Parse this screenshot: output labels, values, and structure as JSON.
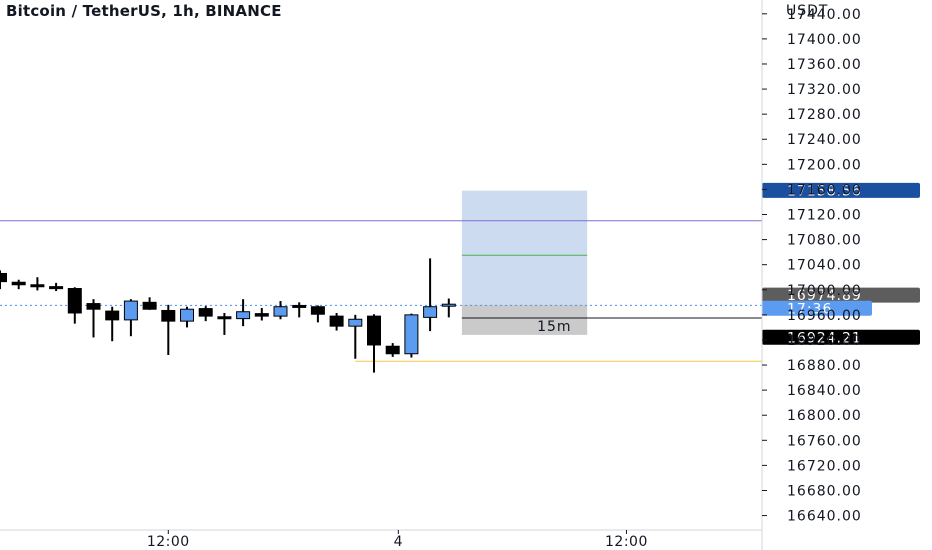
{
  "header": {
    "title": "Bitcoin / TetherUS, 1h, BINANCE"
  },
  "price_axis": {
    "currency": "USDT"
  },
  "colors": {
    "bull": "#5b9cf0",
    "bear": "#000000",
    "grid_axis": "#d1d4dc",
    "horizontal_purple": "#7b6fd6",
    "current_price_dotted": "#5b9cf0",
    "support_yellow": "#f5c842",
    "target_green": "#4caf50",
    "target_zone": "rgba(100,145,205,0.33)",
    "stop_zone": "rgba(128,128,128,0.42)",
    "tag_blue_dark": "#1b4fa0",
    "tag_gray": "#5d5d5d",
    "tag_blue": "#5b9cf0",
    "tag_black": "#000000"
  },
  "chart_data": {
    "type": "candlestick",
    "title": "Bitcoin / TetherUS, 1h, BINANCE",
    "symbol": "BTCUSDT",
    "timeframe": "1h",
    "exchange": "BINANCE",
    "ylabel": "USDT",
    "ylim": [
      16617,
      17462
    ],
    "price_ticks": [
      "17440.00",
      "17400.00",
      "17360.00",
      "17320.00",
      "17280.00",
      "17240.00",
      "17200.00",
      "17160.00",
      "17120.00",
      "17080.00",
      "17040.00",
      "17000.00",
      "16960.00",
      "16920.00",
      "16880.00",
      "16840.00",
      "16800.00",
      "16760.00",
      "16720.00",
      "16680.00",
      "16640.00"
    ],
    "time_ticks": [
      {
        "label": "12:00",
        "bar_index": 9.0
      },
      {
        "label": "4",
        "bar_index": 21.3
      },
      {
        "label": "12:00",
        "bar_index": 33.5
      }
    ],
    "candles": [
      {
        "o": 17026,
        "h": 17031,
        "l": 17001,
        "c": 17013
      },
      {
        "o": 17012,
        "h": 17016,
        "l": 17001,
        "c": 17008
      },
      {
        "o": 17008,
        "h": 17020,
        "l": 16999,
        "c": 17005
      },
      {
        "o": 17005,
        "h": 17011,
        "l": 16998,
        "c": 17003
      },
      {
        "o": 17002,
        "h": 17004,
        "l": 16946,
        "c": 16963
      },
      {
        "o": 16978,
        "h": 16985,
        "l": 16924,
        "c": 16969
      },
      {
        "o": 16966,
        "h": 16973,
        "l": 16918,
        "c": 16952
      },
      {
        "o": 16952,
        "h": 16985,
        "l": 16926,
        "c": 16982
      },
      {
        "o": 16980,
        "h": 16988,
        "l": 16968,
        "c": 16969
      },
      {
        "o": 16967,
        "h": 16976,
        "l": 16896,
        "c": 16950
      },
      {
        "o": 16950,
        "h": 16973,
        "l": 16940,
        "c": 16969
      },
      {
        "o": 16970,
        "h": 16974,
        "l": 16950,
        "c": 16958
      },
      {
        "o": 16957,
        "h": 16963,
        "l": 16928,
        "c": 16954
      },
      {
        "o": 16954,
        "h": 16985,
        "l": 16942,
        "c": 16965
      },
      {
        "o": 16962,
        "h": 16971,
        "l": 16951,
        "c": 16958
      },
      {
        "o": 16958,
        "h": 16982,
        "l": 16953,
        "c": 16973
      },
      {
        "o": 16975,
        "h": 16980,
        "l": 16956,
        "c": 16973
      },
      {
        "o": 16973,
        "h": 16975,
        "l": 16948,
        "c": 16961
      },
      {
        "o": 16958,
        "h": 16963,
        "l": 16935,
        "c": 16942
      },
      {
        "o": 16942,
        "h": 16960,
        "l": 16890,
        "c": 16953
      },
      {
        "o": 16958,
        "h": 16961,
        "l": 16868,
        "c": 16912
      },
      {
        "o": 16910,
        "h": 16915,
        "l": 16893,
        "c": 16898
      },
      {
        "o": 16898,
        "h": 16962,
        "l": 16892,
        "c": 16960
      },
      {
        "o": 16956,
        "h": 17050,
        "l": 16934,
        "c": 16973
      },
      {
        "o": 16974,
        "h": 16986,
        "l": 16956,
        "c": 16977
      }
    ],
    "horizontal_lines": [
      {
        "price": 17110,
        "color": "purple"
      },
      {
        "price": 16975,
        "style": "dotted",
        "color": "blue"
      },
      {
        "price": 16886,
        "color": "yellow",
        "from_bar": 19.0
      }
    ],
    "position_tool": {
      "from_bar": 24.7,
      "to_bar": 31.4,
      "target": 17158,
      "target_line": 17055,
      "entry": 16976,
      "entry_line": 16955,
      "stop": 16928,
      "label": "15m"
    },
    "price_tags": [
      {
        "text": "17158.56",
        "price": 17158.56,
        "color": "blue_dark"
      },
      {
        "text": "16974.89",
        "price": 16991.5,
        "color": "gray"
      },
      {
        "text": "17:36",
        "price": 16970.5,
        "color": "blue"
      },
      {
        "text": "16924.21",
        "price": 16924.21,
        "color": "black"
      }
    ]
  }
}
